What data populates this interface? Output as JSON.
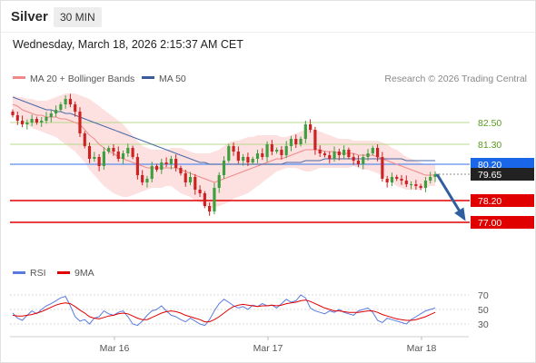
{
  "header": {
    "title": "Silver",
    "interval": "30 MIN"
  },
  "timestamp": "Wednesday, March 18, 2026 2:15:37 AM CET",
  "legend": {
    "ma20_label": "MA 20 + Bollinger Bands",
    "ma50_label": "MA 50",
    "credit": "Research © 2026 Trading Central",
    "rsi_label": "RSI",
    "ma9_label": "9MA"
  },
  "colors": {
    "candle_up": "#3f9f3f",
    "candle_down": "#cc2222",
    "ma20": "#f08a8a",
    "bollinger_fill": "#fde0e0",
    "ma50": "#4a6aa8",
    "resistance_line": "#b8d98a",
    "support_line": "#e00000",
    "pivot_line": "#5a8ef0",
    "pivot_label_bg": "#1a66e8",
    "last_label_bg": "#222222",
    "arrow": "#2f5f9f",
    "rsi": "#5a7ae0",
    "rsi_ma": "#e00000"
  },
  "chart_data": [
    {
      "type": "candlestick",
      "instrument": "Silver",
      "interval": "30 MIN",
      "x_tick_labels": [
        "Mar 16",
        "Mar 17",
        "Mar 18"
      ],
      "ylim": [
        75.2,
        84.2
      ],
      "series": [
        {
          "name": "MA 20 + Bollinger Bands"
        },
        {
          "name": "MA 50"
        }
      ],
      "levels": [
        {
          "label": "82.50",
          "value": 82.5,
          "kind": "resistance"
        },
        {
          "label": "81.30",
          "value": 81.3,
          "kind": "resistance"
        },
        {
          "label": "80.20",
          "value": 80.2,
          "kind": "pivot"
        },
        {
          "label": "79.65",
          "value": 79.65,
          "kind": "last"
        },
        {
          "label": "78.20",
          "value": 78.2,
          "kind": "support"
        },
        {
          "label": "77.00",
          "value": 77.0,
          "kind": "support"
        }
      ],
      "projection": {
        "from": 79.65,
        "to": 77.0
      },
      "closes": [
        82.9,
        82.6,
        82.4,
        82.5,
        82.7,
        82.5,
        82.6,
        82.8,
        83.0,
        83.2,
        83.5,
        83.8,
        83.5,
        83.1,
        81.9,
        81.2,
        80.5,
        80.6,
        80.1,
        80.9,
        81.1,
        80.9,
        80.5,
        80.8,
        81.1,
        80.6,
        79.6,
        79.2,
        79.4,
        80.1,
        79.9,
        80.3,
        80.2,
        80.5,
        80.0,
        79.7,
        79.2,
        79.5,
        78.8,
        78.6,
        77.9,
        77.6,
        78.9,
        79.6,
        80.4,
        81.2,
        80.9,
        80.4,
        80.6,
        80.3,
        80.5,
        80.8,
        80.6,
        81.3,
        80.9,
        81.0,
        80.7,
        81.2,
        81.6,
        81.3,
        81.6,
        82.4,
        82.1,
        81.0,
        80.8,
        80.7,
        80.5,
        80.9,
        80.7,
        81.0,
        80.6,
        80.4,
        80.2,
        80.6,
        80.8,
        81.1,
        80.6,
        79.4,
        79.2,
        79.5,
        79.4,
        79.3,
        79.1,
        79.1,
        79.0,
        78.9,
        79.3,
        79.5,
        79.65
      ],
      "ma20": [
        83.5,
        83.4,
        83.2,
        83.1,
        83.0,
        82.9,
        82.9,
        82.8,
        82.8,
        82.8,
        82.7,
        82.7,
        82.6,
        82.5,
        82.4,
        82.1,
        81.8,
        81.6,
        81.3,
        81.1,
        80.9,
        80.8,
        80.6,
        80.5,
        80.4,
        80.3,
        80.2,
        80.1,
        80.0,
        80.0,
        80.0,
        80.0,
        80.0,
        80.0,
        80.0,
        79.9,
        79.8,
        79.7,
        79.6,
        79.5,
        79.4,
        79.3,
        79.2,
        79.3,
        79.4,
        79.5,
        79.6,
        79.7,
        79.8,
        79.9,
        80.0,
        80.1,
        80.2,
        80.3,
        80.4,
        80.5,
        80.5,
        80.6,
        80.7,
        80.8,
        80.9,
        81.0,
        81.0,
        81.0,
        81.0,
        80.9,
        80.9,
        80.9,
        80.8,
        80.8,
        80.8,
        80.8,
        80.7,
        80.7,
        80.7,
        80.7,
        80.6,
        80.5,
        80.4,
        80.3,
        80.2,
        80.1,
        80.0,
        79.9,
        79.8,
        79.7,
        79.6,
        79.6,
        79.6
      ],
      "bb_upper": [
        84.0,
        83.9,
        83.9,
        83.8,
        83.8,
        83.7,
        83.7,
        83.7,
        83.8,
        83.9,
        84.0,
        84.1,
        84.1,
        84.1,
        84.0,
        83.9,
        83.8,
        83.6,
        83.4,
        83.2,
        83.0,
        82.8,
        82.6,
        82.4,
        82.1,
        81.8,
        81.5,
        81.2,
        81.1,
        81.0,
        81.0,
        81.0,
        81.0,
        81.1,
        81.1,
        81.1,
        81.0,
        80.9,
        80.8,
        80.8,
        80.8,
        80.8,
        80.9,
        81.0,
        81.2,
        81.4,
        81.5,
        81.5,
        81.6,
        81.7,
        81.7,
        81.8,
        81.8,
        81.8,
        81.8,
        81.8,
        81.7,
        81.7,
        81.8,
        81.9,
        82.0,
        82.1,
        82.2,
        82.1,
        82.0,
        81.9,
        81.8,
        81.7,
        81.6,
        81.6,
        81.6,
        81.5,
        81.5,
        81.5,
        81.5,
        81.5,
        81.5,
        81.4,
        81.3,
        81.1,
        81.0,
        80.8,
        80.6,
        80.5,
        80.4,
        80.3,
        80.2,
        80.2,
        80.2
      ],
      "bb_lower": [
        83.0,
        82.9,
        82.6,
        82.4,
        82.2,
        82.1,
        82.0,
        81.9,
        81.8,
        81.7,
        81.5,
        81.3,
        81.1,
        80.9,
        80.6,
        80.3,
        79.9,
        79.6,
        79.3,
        79.0,
        78.8,
        78.6,
        78.5,
        78.4,
        78.4,
        78.5,
        78.6,
        78.7,
        78.8,
        78.9,
        78.9,
        78.9,
        79.0,
        79.0,
        78.8,
        78.6,
        78.5,
        78.4,
        78.2,
        78.1,
        77.9,
        77.8,
        77.8,
        77.9,
        78.0,
        78.1,
        78.3,
        78.4,
        78.5,
        78.6,
        78.8,
        79.0,
        79.2,
        79.4,
        79.6,
        79.8,
        79.9,
        80.0,
        80.0,
        80.0,
        79.9,
        79.8,
        79.8,
        79.9,
        80.0,
        80.0,
        80.0,
        80.0,
        80.0,
        80.0,
        80.0,
        80.1,
        80.0,
        79.9,
        79.9,
        79.8,
        79.7,
        79.6,
        79.4,
        79.2,
        79.0,
        78.9,
        78.8,
        78.8,
        78.8,
        78.8,
        78.9,
        79.0,
        79.0
      ],
      "ma50": [
        83.9,
        83.8,
        83.7,
        83.6,
        83.5,
        83.4,
        83.3,
        83.2,
        83.2,
        83.1,
        83.1,
        83.0,
        83.0,
        82.9,
        82.8,
        82.7,
        82.6,
        82.5,
        82.4,
        82.3,
        82.2,
        82.1,
        82.0,
        81.9,
        81.8,
        81.7,
        81.6,
        81.5,
        81.4,
        81.3,
        81.2,
        81.1,
        81.0,
        80.9,
        80.8,
        80.7,
        80.6,
        80.5,
        80.4,
        80.3,
        80.3,
        80.2,
        80.2,
        80.2,
        80.2,
        80.2,
        80.2,
        80.2,
        80.2,
        80.2,
        80.2,
        80.2,
        80.2,
        80.2,
        80.2,
        80.2,
        80.2,
        80.3,
        80.3,
        80.3,
        80.3,
        80.4,
        80.4,
        80.4,
        80.4,
        80.5,
        80.5,
        80.5,
        80.5,
        80.5,
        80.5,
        80.5,
        80.5,
        80.5,
        80.5,
        80.5,
        80.5,
        80.5,
        80.5,
        80.5,
        80.5,
        80.5,
        80.4,
        80.4,
        80.4,
        80.4,
        80.4,
        80.4,
        80.4
      ]
    },
    {
      "type": "line",
      "title": "RSI",
      "series": [
        {
          "name": "RSI",
          "values": [
            45,
            38,
            35,
            42,
            48,
            44,
            50,
            55,
            58,
            62,
            66,
            68,
            55,
            40,
            34,
            36,
            30,
            38,
            40,
            48,
            44,
            42,
            46,
            48,
            40,
            30,
            28,
            34,
            42,
            48,
            50,
            55,
            48,
            42,
            40,
            36,
            33,
            38,
            34,
            30,
            28,
            36,
            48,
            58,
            64,
            60,
            55,
            52,
            54,
            50,
            56,
            54,
            58,
            55,
            56,
            52,
            58,
            64,
            60,
            62,
            70,
            66,
            52,
            48,
            46,
            44,
            48,
            46,
            50,
            46,
            44,
            42,
            48,
            50,
            52,
            46,
            35,
            32,
            38,
            36,
            34,
            32,
            30,
            36,
            40,
            44,
            48,
            50,
            52
          ]
        },
        {
          "name": "9MA",
          "values": [
            42,
            41,
            41,
            42,
            43,
            45,
            47,
            50,
            53,
            56,
            58,
            59,
            58,
            54,
            49,
            45,
            40,
            38,
            37,
            39,
            41,
            42,
            44,
            45,
            44,
            41,
            38,
            36,
            36,
            39,
            42,
            45,
            47,
            48,
            47,
            45,
            42,
            40,
            38,
            36,
            33,
            33,
            36,
            40,
            45,
            50,
            54,
            56,
            57,
            56,
            55,
            54,
            55,
            55,
            56,
            55,
            56,
            58,
            59,
            60,
            62,
            63,
            61,
            58,
            55,
            52,
            50,
            48,
            48,
            47,
            46,
            46,
            46,
            47,
            48,
            48,
            46,
            43,
            41,
            39,
            37,
            36,
            35,
            35,
            36,
            38,
            40,
            43,
            46
          ]
        }
      ],
      "y_ticks": [
        "70",
        "50",
        "30"
      ],
      "ylim": [
        20,
        80
      ]
    }
  ]
}
